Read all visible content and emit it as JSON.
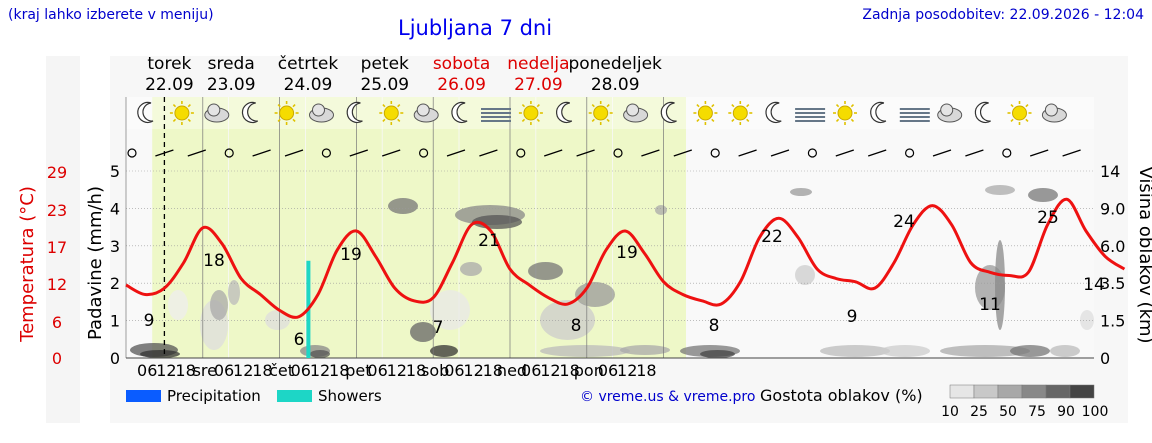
{
  "header": {
    "location_hint": "(kraj lahko izberete v meniju)",
    "title": "Ljubljana 7 dni",
    "updated": "Zadnja posodobitev: 22.09.2026 - 12:04"
  },
  "days": [
    {
      "name": "torek",
      "date": "22.09",
      "weekend": false
    },
    {
      "name": "sreda",
      "date": "23.09",
      "weekend": false
    },
    {
      "name": "četrtek",
      "date": "24.09",
      "weekend": false
    },
    {
      "name": "petek",
      "date": "25.09",
      "weekend": false
    },
    {
      "name": "sobota",
      "date": "26.09",
      "weekend": true
    },
    {
      "name": "nedelja",
      "date": "27.09",
      "weekend": true
    },
    {
      "name": "ponedeljek",
      "date": "28.09",
      "weekend": false
    }
  ],
  "legend": {
    "precipitation": "Precipitation",
    "showers": "Showers",
    "copyright": "© vreme.us & vreme.pro",
    "cloud_title": "Gostota oblakov (%)",
    "cloud_levels": [
      "10",
      "25",
      "50",
      "75",
      "90",
      "100"
    ]
  },
  "colors": {
    "temperature": "#ee1111",
    "precipitation": "#0a5cff",
    "showers": "#1dd6c6",
    "daylight": "#eef8c8",
    "weekend_date": "#dd0000",
    "link": "#0000cc"
  },
  "chart_data": {
    "type": "line",
    "x_tick_labels": [
      "06",
      "12",
      "18",
      "sre",
      "06",
      "12",
      "18",
      "čet",
      "06",
      "12",
      "18",
      "pet",
      "06",
      "12",
      "18",
      "sob",
      "06",
      "12",
      "18",
      "ned",
      "06",
      "12",
      "18",
      "pon",
      "06",
      "12",
      "18"
    ],
    "left_axis_precip": {
      "label": "Padavine (mm/h)",
      "ticks": [
        "0",
        "1",
        "2",
        "3",
        "4",
        "5"
      ],
      "range": [
        0,
        5
      ]
    },
    "left_axis_temp": {
      "label": "Temperatura (°C)",
      "ticks": [
        "0",
        "6",
        "12",
        "17",
        "23",
        "29"
      ]
    },
    "right_axis_cloud": {
      "label": "Višina oblakov (km)",
      "ticks": [
        "0",
        "1.5",
        "3.5",
        "6.0",
        "9.0",
        "14"
      ]
    },
    "temperature_labels": [
      "9",
      "18",
      "6",
      "19",
      "7",
      "21",
      "8",
      "19",
      "8",
      "22",
      "9",
      "24",
      "11",
      "25",
      "14"
    ],
    "temperature_series": {
      "name": "Temperatura",
      "points": [
        [
          0,
          11.5
        ],
        [
          6,
          10
        ],
        [
          12,
          11
        ],
        [
          18,
          15
        ],
        [
          24,
          20.5
        ],
        [
          30,
          18
        ],
        [
          36,
          12.5
        ],
        [
          42,
          10
        ],
        [
          48,
          7.5
        ],
        [
          54,
          6.5
        ],
        [
          60,
          10
        ],
        [
          66,
          17
        ],
        [
          72,
          20
        ],
        [
          78,
          16
        ],
        [
          84,
          11
        ],
        [
          90,
          9
        ],
        [
          96,
          9.5
        ],
        [
          102,
          15
        ],
        [
          108,
          21
        ],
        [
          114,
          20
        ],
        [
          120,
          14
        ],
        [
          126,
          11.5
        ],
        [
          132,
          9.5
        ],
        [
          138,
          8.5
        ],
        [
          144,
          11
        ],
        [
          150,
          17
        ],
        [
          156,
          20
        ],
        [
          162,
          16.5
        ],
        [
          168,
          12
        ],
        [
          174,
          10
        ],
        [
          180,
          9
        ],
        [
          186,
          8.5
        ],
        [
          192,
          12
        ],
        [
          198,
          19
        ],
        [
          204,
          22
        ],
        [
          210,
          19
        ],
        [
          216,
          14
        ],
        [
          222,
          12.5
        ],
        [
          228,
          12
        ],
        [
          234,
          11
        ],
        [
          240,
          15
        ],
        [
          246,
          21
        ],
        [
          252,
          24
        ],
        [
          258,
          21
        ],
        [
          264,
          15
        ],
        [
          270,
          13.5
        ],
        [
          276,
          13
        ],
        [
          282,
          13.5
        ],
        [
          288,
          21
        ],
        [
          294,
          25
        ],
        [
          300,
          20
        ],
        [
          306,
          16
        ],
        [
          312,
          14
        ]
      ]
    },
    "precipitation_series": {
      "name": "Precipitation",
      "values": []
    },
    "showers_series": {
      "name": "Showers",
      "events": [
        {
          "hour": 57,
          "mm_h": 2.6
        }
      ]
    },
    "grid": true,
    "legend": "bottom"
  }
}
